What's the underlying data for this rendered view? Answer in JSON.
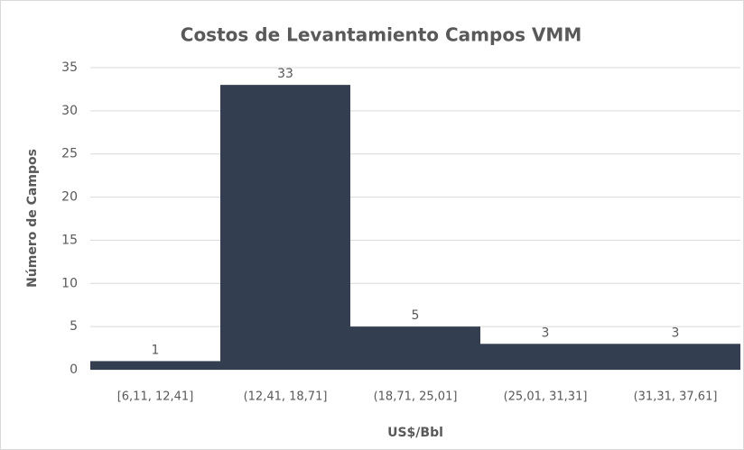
{
  "chart_data": {
    "type": "bar",
    "title": "Costos de Levantamiento Campos VMM",
    "x_label": "US$/Bbl",
    "y_label": "Número de Campos",
    "categories": [
      "[6,11, 12,41]",
      "(12,41, 18,71]",
      "(18,71, 25,01]",
      "(25,01, 31,31]",
      "(31,31, 37,61]"
    ],
    "values": [
      1,
      33,
      5,
      3,
      3
    ],
    "color": "#333f50",
    "ylim": [
      0,
      35
    ],
    "yticks": [
      0,
      5,
      10,
      15,
      20,
      25,
      30,
      35
    ],
    "grid": true
  }
}
